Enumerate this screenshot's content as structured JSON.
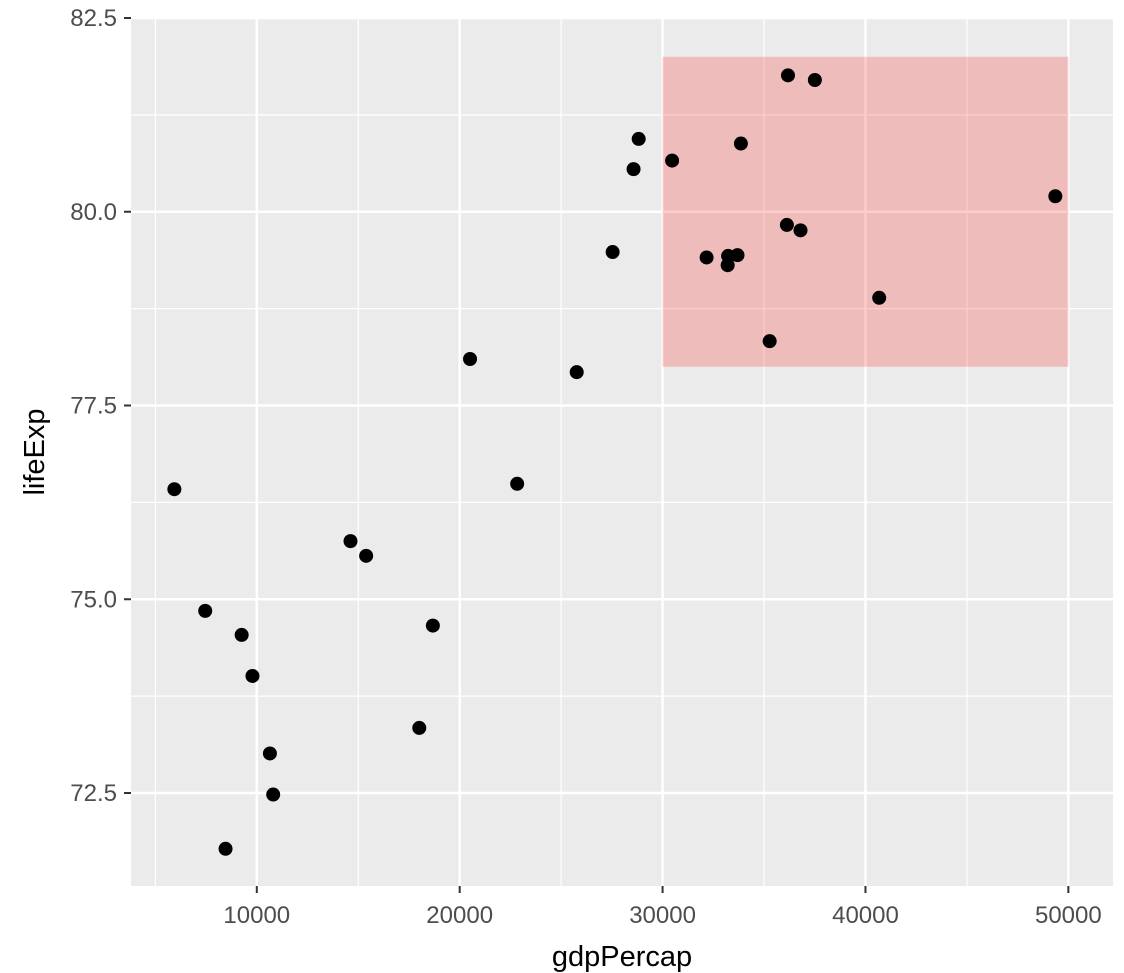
{
  "chart_data": {
    "type": "scatter",
    "xlabel": "gdpPercap",
    "ylabel": "lifeExp",
    "xlim": [
      3800,
      52200
    ],
    "ylim": [
      71.3,
      82.5
    ],
    "x_major_ticks": [
      10000,
      20000,
      30000,
      40000,
      50000
    ],
    "x_minor_ticks": [
      5000,
      15000,
      25000,
      35000,
      45000
    ],
    "y_major_ticks": [
      72.5,
      75.0,
      77.5,
      80.0,
      82.5
    ],
    "y_minor_ticks": [
      71.25,
      73.75,
      76.25,
      78.75,
      81.25
    ],
    "x_tick_labels": [
      "10000",
      "20000",
      "30000",
      "40000",
      "50000"
    ],
    "y_tick_labels": [
      "72.5",
      "75.0",
      "77.5",
      "80.0",
      "82.5"
    ],
    "grid": true,
    "colors": {
      "panel_background": "#ebebeb",
      "grid_line": "#ffffff",
      "point": "#000000",
      "highlight_fill": "#ff0000",
      "highlight_opacity": 0.2
    },
    "highlight_rect": {
      "x": [
        30000,
        50000
      ],
      "y": [
        78.0,
        82.0
      ]
    },
    "points": [
      {
        "x": 5937,
        "y": 76.42
      },
      {
        "x": 7458,
        "y": 74.85
      },
      {
        "x": 9254,
        "y": 74.54
      },
      {
        "x": 9787,
        "y": 74.01
      },
      {
        "x": 10646,
        "y": 73.01
      },
      {
        "x": 10808,
        "y": 72.48
      },
      {
        "x": 8460,
        "y": 71.78
      },
      {
        "x": 14619,
        "y": 75.75
      },
      {
        "x": 15390,
        "y": 75.56
      },
      {
        "x": 18009,
        "y": 73.34
      },
      {
        "x": 18678,
        "y": 74.66
      },
      {
        "x": 20510,
        "y": 78.1
      },
      {
        "x": 22833,
        "y": 76.49
      },
      {
        "x": 25768,
        "y": 77.93
      },
      {
        "x": 27538,
        "y": 79.48
      },
      {
        "x": 28570,
        "y": 80.55
      },
      {
        "x": 28822,
        "y": 80.94
      },
      {
        "x": 30470,
        "y": 80.66
      },
      {
        "x": 32170,
        "y": 79.41
      },
      {
        "x": 33208,
        "y": 79.31
      },
      {
        "x": 33230,
        "y": 79.43
      },
      {
        "x": 33693,
        "y": 79.44
      },
      {
        "x": 33860,
        "y": 80.88
      },
      {
        "x": 35278,
        "y": 78.33
      },
      {
        "x": 36127,
        "y": 79.83
      },
      {
        "x": 36181,
        "y": 81.76
      },
      {
        "x": 36798,
        "y": 79.76
      },
      {
        "x": 37506,
        "y": 81.7
      },
      {
        "x": 40676,
        "y": 78.89
      },
      {
        "x": 49357,
        "y": 80.2
      }
    ]
  }
}
